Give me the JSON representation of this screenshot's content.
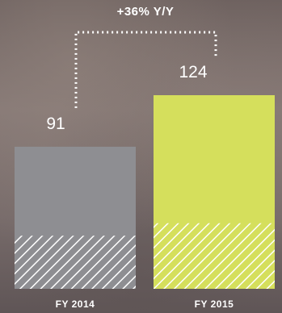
{
  "chart_data": {
    "type": "bar",
    "title": "",
    "xlabel": "",
    "ylabel": "",
    "categories": [
      "FY 2014",
      "FY 2015"
    ],
    "values": [
      91,
      124
    ],
    "value_labels": [
      "91",
      "124"
    ],
    "hatched_portion": [
      34,
      42
    ],
    "annotation": "+36% Y/Y",
    "ylim": [
      0,
      124
    ],
    "grid": false,
    "colors": {
      "bar_2014": "#8e8e92",
      "bar_2015": "#d5df5c",
      "hatch_lines": "#ffffff",
      "text": "#ffffff"
    }
  }
}
